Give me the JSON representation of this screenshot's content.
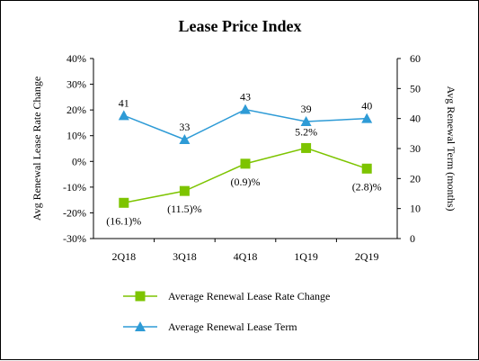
{
  "chart_data": {
    "type": "line",
    "title": "Lease Price Index",
    "categories": [
      "2Q18",
      "3Q18",
      "4Q18",
      "1Q19",
      "2Q19"
    ],
    "left_axis": {
      "label": "Avg Renewal Lease Rate Change",
      "ticks": [
        "40%",
        "30%",
        "20%",
        "10%",
        "0%",
        "-10%",
        "-20%",
        "-30%"
      ],
      "range": [
        -30,
        40
      ]
    },
    "right_axis": {
      "label": "Avg Renewal Term (months)",
      "ticks": [
        "60",
        "50",
        "40",
        "30",
        "20",
        "10",
        "0"
      ],
      "range": [
        0,
        60
      ]
    },
    "grid": false,
    "legend_position": "bottom",
    "series": [
      {
        "name": "Average Renewal Lease Rate Change",
        "axis": "left",
        "marker": "square",
        "color": "#7DC400",
        "values": [
          -16.1,
          -11.5,
          -0.9,
          5.2,
          -2.8
        ],
        "labels": [
          "(16.1)%",
          "(11.5)%",
          "(0.9)%",
          "5.2%",
          "(2.8)%"
        ]
      },
      {
        "name": "Average Renewal Lease Term",
        "axis": "right",
        "marker": "triangle",
        "color": "#2E9BD6",
        "values": [
          41,
          33,
          43,
          39,
          40
        ],
        "labels": [
          "41",
          "33",
          "43",
          "39",
          "40"
        ]
      }
    ]
  }
}
